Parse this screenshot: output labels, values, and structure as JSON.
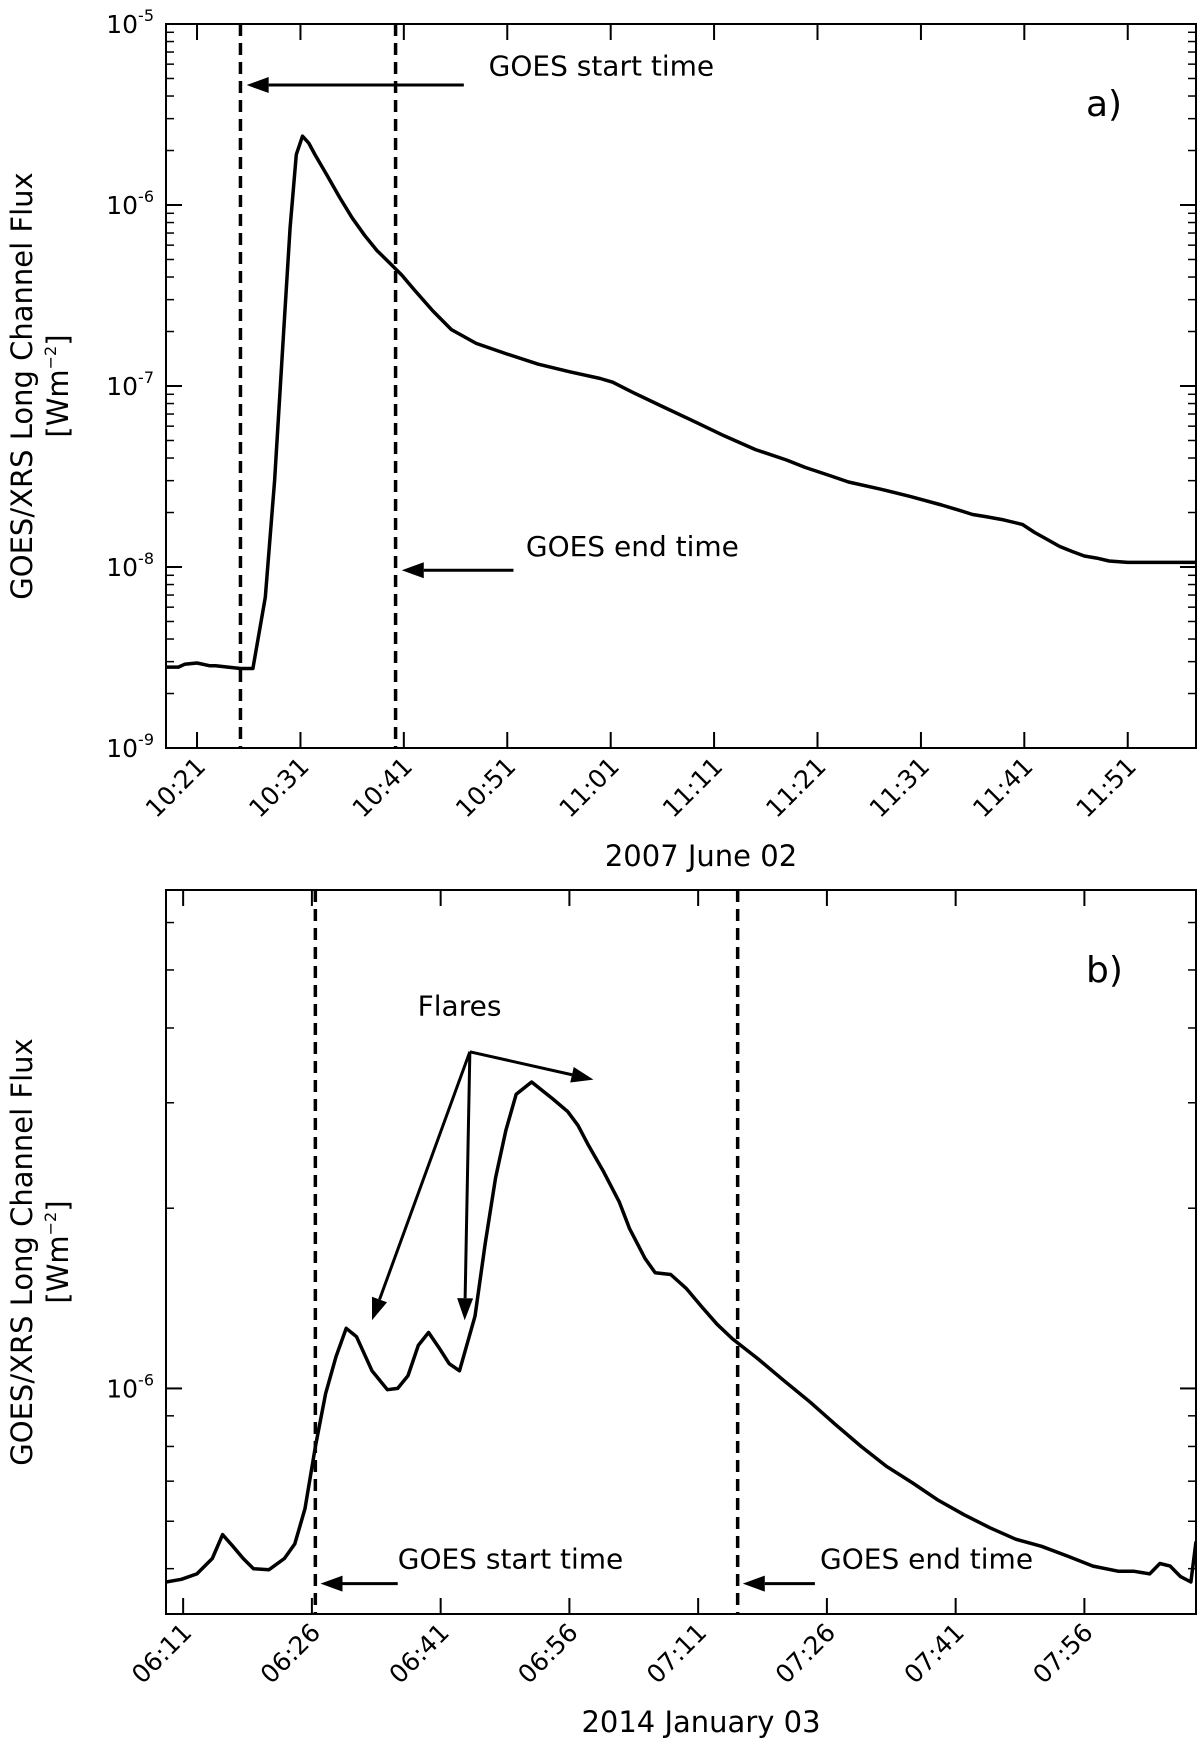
{
  "chart_data": [
    {
      "type": "line",
      "panel_label": "a)",
      "xlabel": "2007 June 02",
      "ylabel": "GOES/XRS Long Channel Flux",
      "yunits": {
        "base": "[Wm",
        "exp": "−2",
        "close": "]"
      },
      "yscale": "log",
      "xlim": [
        10.3,
        11.96
      ],
      "ylim": [
        1e-09,
        1e-05
      ],
      "xticks": [
        {
          "x": 10.35,
          "label": "10:21"
        },
        {
          "x": 10.5167,
          "label": "10:31"
        },
        {
          "x": 10.6833,
          "label": "10:41"
        },
        {
          "x": 10.85,
          "label": "10:51"
        },
        {
          "x": 11.0167,
          "label": "11:01"
        },
        {
          "x": 11.1833,
          "label": "11:11"
        },
        {
          "x": 11.35,
          "label": "11:21"
        },
        {
          "x": 11.5167,
          "label": "11:31"
        },
        {
          "x": 11.6833,
          "label": "11:41"
        },
        {
          "x": 11.85,
          "label": "11:51"
        }
      ],
      "yticks": [
        {
          "v": 1e-09,
          "base": "10",
          "exp": "-9"
        },
        {
          "v": 1e-08,
          "base": "10",
          "exp": "-8"
        },
        {
          "v": 1e-07,
          "base": "10",
          "exp": "-7"
        },
        {
          "v": 1e-06,
          "base": "10",
          "exp": "-6"
        },
        {
          "v": 1e-05,
          "base": "10",
          "exp": "-5"
        }
      ],
      "minor_ticks": true,
      "series": [
        {
          "name": "GOES long channel flux",
          "x": [
            10.3,
            10.32,
            10.33,
            10.35,
            10.37,
            10.38,
            10.4,
            10.42,
            10.44,
            10.46,
            10.475,
            10.49,
            10.5,
            10.51,
            10.52,
            10.53,
            10.54,
            10.56,
            10.58,
            10.6,
            10.62,
            10.64,
            10.66,
            10.68,
            10.7,
            10.73,
            10.76,
            10.8,
            10.85,
            10.9,
            10.95,
            11.0,
            11.02,
            11.05,
            11.1,
            11.15,
            11.2,
            11.25,
            11.3,
            11.33,
            11.37,
            11.4,
            11.45,
            11.5,
            11.55,
            11.58,
            11.6,
            11.62,
            11.65,
            11.68,
            11.7,
            11.72,
            11.74,
            11.76,
            11.78,
            11.8,
            11.82,
            11.85,
            11.88,
            11.9,
            11.96
          ],
          "y": [
            2.8e-09,
            2.8e-09,
            2.9e-09,
            2.95e-09,
            2.85e-09,
            2.85e-09,
            2.8e-09,
            2.75e-09,
            2.75e-09,
            6.8e-09,
            3e-08,
            2.1e-07,
            7.5e-07,
            1.9e-06,
            2.4e-06,
            2.2e-06,
            1.9e-06,
            1.45e-06,
            1.1e-06,
            8.5e-07,
            6.8e-07,
            5.6e-07,
            4.8e-07,
            4.1e-07,
            3.4e-07,
            2.6e-07,
            2.05e-07,
            1.72e-07,
            1.5e-07,
            1.32e-07,
            1.2e-07,
            1.1e-07,
            1.05e-07,
            9.3e-08,
            7.7e-08,
            6.4e-08,
            5.3e-08,
            4.45e-08,
            3.9e-08,
            3.55e-08,
            3.2e-08,
            2.95e-08,
            2.7e-08,
            2.45e-08,
            2.2e-08,
            2.05e-08,
            1.95e-08,
            1.9e-08,
            1.82e-08,
            1.72e-08,
            1.55e-08,
            1.42e-08,
            1.3e-08,
            1.22e-08,
            1.15e-08,
            1.12e-08,
            1.08e-08,
            1.06e-08,
            1.06e-08,
            1.06e-08,
            1.06e-08
          ]
        }
      ],
      "vlines": [
        10.42,
        10.67
      ],
      "annotations": [
        {
          "text": "GOES start time",
          "text_x": 10.82,
          "text_y": 5.2e-06,
          "arrow_from": [
            10.78,
            4.6e-06
          ],
          "arrow_to": [
            10.43,
            4.6e-06
          ]
        },
        {
          "text": "GOES end time",
          "text_x": 10.88,
          "text_y": 1.15e-08,
          "arrow_from": [
            10.86,
            9.6e-09
          ],
          "arrow_to": [
            10.68,
            9.6e-09
          ]
        }
      ]
    },
    {
      "type": "line",
      "panel_label": "b)",
      "xlabel": "2014 January 03",
      "ylabel": "GOES/XRS Long Channel Flux",
      "yunits": {
        "base": "[Wm",
        "exp": "−2",
        "close": "]"
      },
      "yscale": "log",
      "xlim": [
        6.15,
        8.15
      ],
      "ylim": [
        4.2e-07,
        6.8e-06
      ],
      "xticks": [
        {
          "x": 6.1833,
          "label": "06:11"
        },
        {
          "x": 6.4333,
          "label": "06:26"
        },
        {
          "x": 6.6833,
          "label": "06:41"
        },
        {
          "x": 6.9333,
          "label": "06:56"
        },
        {
          "x": 7.1833,
          "label": "07:11"
        },
        {
          "x": 7.4333,
          "label": "07:26"
        },
        {
          "x": 7.6833,
          "label": "07:41"
        },
        {
          "x": 7.9333,
          "label": "07:56"
        }
      ],
      "yticks": [
        {
          "v": 1e-06,
          "base": "10",
          "exp": "-6"
        }
      ],
      "minor_ticks": true,
      "series": [
        {
          "name": "GOES long channel flux",
          "x": [
            6.15,
            6.18,
            6.21,
            6.24,
            6.26,
            6.28,
            6.3,
            6.32,
            6.35,
            6.38,
            6.4,
            6.42,
            6.44,
            6.46,
            6.48,
            6.5,
            6.52,
            6.55,
            6.58,
            6.6,
            6.62,
            6.64,
            6.66,
            6.68,
            6.7,
            6.72,
            6.75,
            6.77,
            6.79,
            6.81,
            6.83,
            6.86,
            6.9,
            6.93,
            6.95,
            6.97,
            7.0,
            7.03,
            7.05,
            7.08,
            7.1,
            7.13,
            7.16,
            7.19,
            7.22,
            7.25,
            7.3,
            7.35,
            7.4,
            7.45,
            7.5,
            7.55,
            7.6,
            7.65,
            7.7,
            7.75,
            7.8,
            7.85,
            7.9,
            7.95,
            8.0,
            8.03,
            8.06,
            8.08,
            8.1,
            8.12,
            8.14,
            8.15
          ],
          "y": [
            4.75e-07,
            4.8e-07,
            4.9e-07,
            5.2e-07,
            5.7e-07,
            5.45e-07,
            5.2e-07,
            5e-07,
            4.98e-07,
            5.2e-07,
            5.5e-07,
            6.3e-07,
            8e-07,
            9.8e-07,
            1.13e-06,
            1.26e-06,
            1.22e-06,
            1.07e-06,
            9.95e-07,
            1e-06,
            1.05e-06,
            1.18e-06,
            1.24e-06,
            1.17e-06,
            1.1e-06,
            1.07e-06,
            1.32e-06,
            1.75e-06,
            2.25e-06,
            2.7e-06,
            3.1e-06,
            3.25e-06,
            3.05e-06,
            2.9e-06,
            2.75e-06,
            2.55e-06,
            2.3e-06,
            2.05e-06,
            1.85e-06,
            1.65e-06,
            1.56e-06,
            1.55e-06,
            1.47e-06,
            1.37e-06,
            1.28e-06,
            1.21e-06,
            1.12e-06,
            1.03e-06,
            9.5e-07,
            8.7e-07,
            8e-07,
            7.4e-07,
            6.95e-07,
            6.5e-07,
            6.15e-07,
            5.85e-07,
            5.6e-07,
            5.45e-07,
            5.25e-07,
            5.05e-07,
            4.95e-07,
            4.95e-07,
            4.9e-07,
            5.1e-07,
            5.05e-07,
            4.85e-07,
            4.75e-07,
            5.55e-07
          ]
        }
      ],
      "vlines": [
        6.44,
        7.26
      ],
      "annotations": [
        {
          "text": "Flares",
          "text_x": 6.72,
          "text_y": 4.2e-06,
          "fan_from": [
            6.74,
            3.65e-06
          ],
          "fan_to": [
            [
              6.55,
              1.3e-06
            ],
            [
              6.73,
              1.3e-06
            ],
            [
              6.98,
              3.28e-06
            ]
          ]
        },
        {
          "text": "GOES start time",
          "text_x": 6.6,
          "text_y": 5e-07,
          "arrow_from": [
            6.6,
            4.72e-07
          ],
          "arrow_to": [
            6.45,
            4.72e-07
          ]
        },
        {
          "text": "GOES end time",
          "text_x": 7.42,
          "text_y": 5e-07,
          "arrow_from": [
            7.41,
            4.72e-07
          ],
          "arrow_to": [
            7.27,
            4.72e-07
          ]
        }
      ]
    }
  ]
}
